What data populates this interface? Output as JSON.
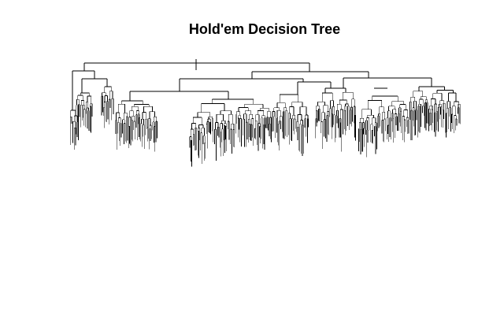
{
  "figure": {
    "title": "Hold'em Decision Tree",
    "colors": {
      "background": "#ffffff",
      "lines": "#000000"
    }
  },
  "chart_data": {
    "type": "tree",
    "title": "Hold'em Decision Tree",
    "xlabel": "",
    "ylabel": "",
    "grid": false,
    "legend": "none",
    "node_labels": false
  }
}
